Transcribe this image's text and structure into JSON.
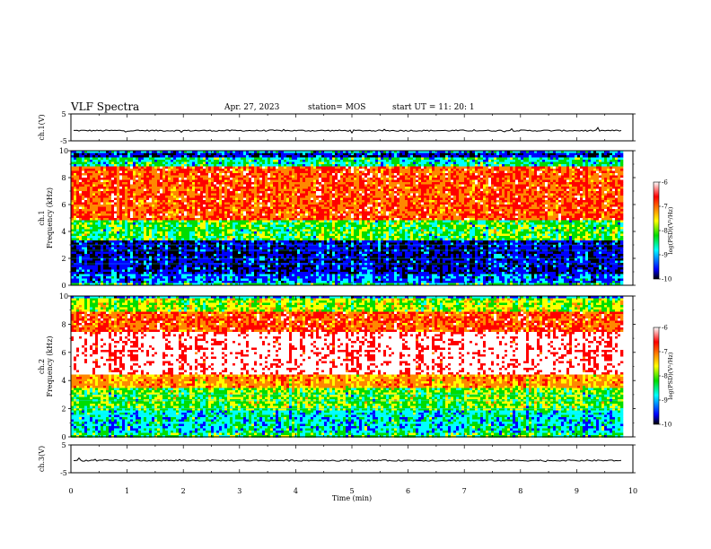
{
  "header": {
    "title": "VLF Spectra",
    "date": "Apr. 27, 2023",
    "station": "station= MOS",
    "start": "start  UT =   11: 20: 1"
  },
  "chart_data": [
    {
      "type": "line",
      "panel": "ch1-waveform",
      "ylabel": "ch.1(V)",
      "ylim": [
        -5,
        5
      ],
      "yticks": [
        "5",
        "-5"
      ],
      "xlim": [
        0,
        10
      ],
      "trace_level": -1.2
    },
    {
      "type": "heatmap",
      "panel": "ch1-spectrogram",
      "ylabel": "ch.1\nFrequency (kHz)",
      "ylim": [
        0,
        10
      ],
      "yticks": [
        "0",
        "2",
        "4",
        "6",
        "8",
        "10"
      ],
      "xlim": [
        0,
        10
      ],
      "xmax_data": 9.8,
      "bands": [
        {
          "from": 0,
          "to": 0.3,
          "level": -8.5
        },
        {
          "from": 0.3,
          "to": 1.0,
          "level": -9.2
        },
        {
          "from": 1.0,
          "to": 3.5,
          "level": -9.6
        },
        {
          "from": 3.5,
          "to": 5.0,
          "level": -8.3
        },
        {
          "from": 5.0,
          "to": 9.0,
          "level": -6.9
        },
        {
          "from": 9.0,
          "to": 9.6,
          "level": -8.6
        },
        {
          "from": 9.6,
          "to": 10.0,
          "level": -9.6
        }
      ],
      "colorbar": {
        "label": "log(PSD)(V²/Hz)",
        "range": [
          -10,
          -6
        ],
        "ticks": [
          "-6",
          "-7",
          "-8",
          "-9",
          "-10"
        ]
      }
    },
    {
      "type": "heatmap",
      "panel": "ch2-spectrogram",
      "ylabel": "ch.2\nFrequency (kHz)",
      "ylim": [
        0,
        10
      ],
      "yticks": [
        "0",
        "2",
        "4",
        "6",
        "8",
        "10"
      ],
      "xlim": [
        0,
        10
      ],
      "xmax_data": 9.8,
      "bands": [
        {
          "from": 0,
          "to": 0.3,
          "level": -8.4
        },
        {
          "from": 0.3,
          "to": 2.0,
          "level": -8.8
        },
        {
          "from": 2.0,
          "to": 3.5,
          "level": -8.2
        },
        {
          "from": 3.5,
          "to": 4.5,
          "level": -7.3
        },
        {
          "from": 4.5,
          "to": 7.5,
          "level": -6.1
        },
        {
          "from": 7.5,
          "to": 9.0,
          "level": -6.9
        },
        {
          "from": 9.0,
          "to": 10.0,
          "level": -8.0
        }
      ],
      "colorbar": {
        "label": "log(PSD)(V²/Hz)",
        "range": [
          -10,
          -6
        ],
        "ticks": [
          "-6",
          "-7",
          "-8",
          "-9",
          "-10"
        ]
      }
    },
    {
      "type": "line",
      "panel": "ch3-waveform",
      "ylabel": "ch.3(V)",
      "ylim": [
        -5,
        5
      ],
      "yticks": [
        "5",
        "-5"
      ],
      "xlim": [
        0,
        10
      ],
      "trace_level": -0.6
    }
  ],
  "xaxis": {
    "label": "Time  (min)",
    "ticks": [
      "0",
      "1",
      "2",
      "3",
      "4",
      "5",
      "6",
      "7",
      "8",
      "9",
      "10"
    ]
  },
  "colors": {
    "colormap": [
      "#ffffff",
      "#ff0000",
      "#ff8800",
      "#ffff00",
      "#00dd00",
      "#00ffff",
      "#0000ff",
      "#000000"
    ]
  }
}
